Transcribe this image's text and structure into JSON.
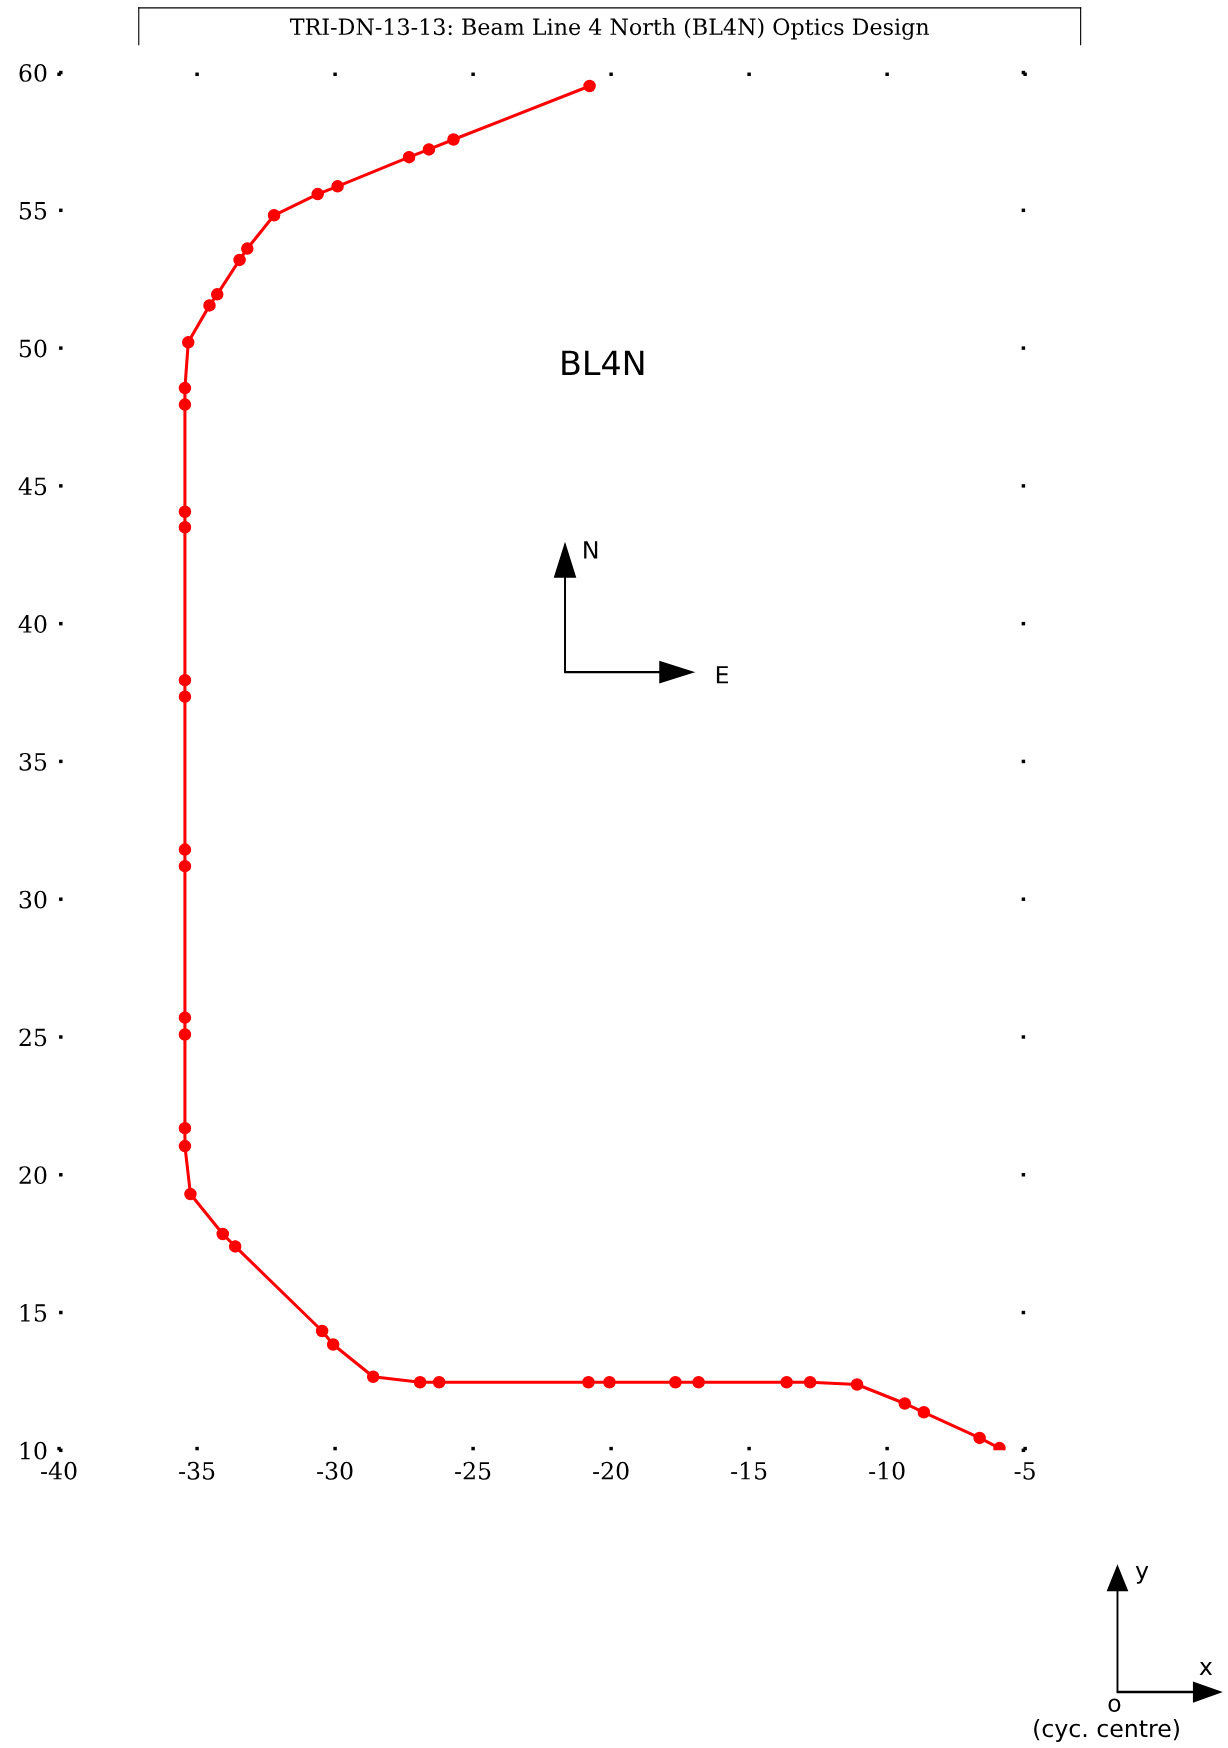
{
  "chart_data": {
    "type": "line",
    "title": "TRI-DN-13-13: Beam Line 4 North (BL4N) Optics Design",
    "x": [
      -5.93,
      -6.65,
      -8.67,
      -9.36,
      -11.09,
      -12.79,
      -13.64,
      -16.83,
      -17.67,
      -20.06,
      -20.82,
      -26.23,
      -26.92,
      -28.62,
      -30.07,
      -30.47,
      -33.62,
      -34.07,
      -35.24,
      -35.44,
      -35.44,
      -35.44,
      -35.44,
      -35.44,
      -35.44,
      -35.44,
      -35.44,
      -35.44,
      -35.44,
      -35.44,
      -35.44,
      -35.32,
      -34.55,
      -34.27,
      -33.46,
      -33.18,
      -32.21,
      -30.63,
      -29.91,
      -27.32,
      -26.6,
      -25.71,
      -20.78
    ],
    "series": [
      {
        "color": "#ff0000",
        "values": [
          10.08,
          10.45,
          11.38,
          11.7,
          12.39,
          12.47,
          12.47,
          12.47,
          12.47,
          12.47,
          12.47,
          12.47,
          12.47,
          12.67,
          13.84,
          14.33,
          17.4,
          17.85,
          19.3,
          21.04,
          21.69,
          25.09,
          25.7,
          31.2,
          31.8,
          37.35,
          37.95,
          43.5,
          44.06,
          47.95,
          48.55,
          50.21,
          51.55,
          51.95,
          53.2,
          53.61,
          54.82,
          55.59,
          55.87,
          56.93,
          57.21,
          57.57,
          59.51
        ]
      }
    ],
    "marker": "circle",
    "line_style": "solid",
    "grid": false,
    "legend": false,
    "xlim": [
      -40,
      -5
    ],
    "xticks": [
      {
        "value": -40,
        "label": "-40"
      },
      {
        "value": -35,
        "label": "-35"
      },
      {
        "value": -30,
        "label": "-30"
      },
      {
        "value": -25,
        "label": "-25"
      },
      {
        "value": -20,
        "label": "-20"
      },
      {
        "value": -15,
        "label": "-15"
      },
      {
        "value": -10,
        "label": "-10"
      },
      {
        "value": -5,
        "label": "-5"
      }
    ],
    "ylim": [
      10,
      60
    ],
    "yticks": [
      10,
      15,
      20,
      25,
      30,
      35,
      40,
      45,
      50,
      55,
      60
    ],
    "annotations": [
      "BL4N",
      "N",
      "E",
      "y",
      "x",
      "o",
      "(cyc. centre)"
    ]
  }
}
